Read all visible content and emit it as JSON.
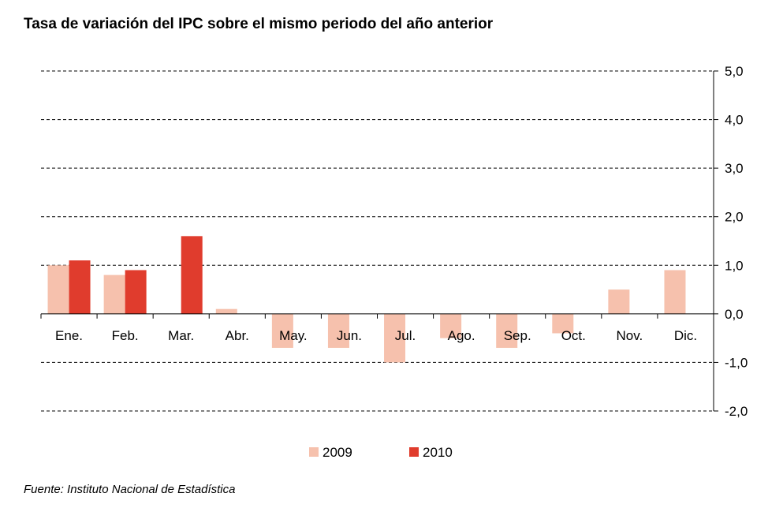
{
  "title": "Tasa de variación del IPC sobre el mismo periodo del año anterior",
  "source": "Fuente: Instituto Nacional de Estadística",
  "colors": {
    "s2009": "#f6c1ad",
    "s2010": "#e03c2d",
    "grid": "#000000"
  },
  "chart_data": {
    "type": "bar",
    "title": "Tasa de variación del IPC sobre el mismo periodo del año anterior",
    "categories": [
      "Ene.",
      "Feb.",
      "Mar.",
      "Abr.",
      "May.",
      "Jun.",
      "Jul.",
      "Ago.",
      "Sep.",
      "Oct.",
      "Nov.",
      "Dic."
    ],
    "series": [
      {
        "name": "2009",
        "values": [
          1.0,
          0.8,
          null,
          0.1,
          -0.7,
          -0.7,
          -1.0,
          -0.5,
          -0.7,
          -0.4,
          0.5,
          0.9
        ]
      },
      {
        "name": "2010",
        "values": [
          1.1,
          0.9,
          1.6,
          null,
          null,
          null,
          null,
          null,
          null,
          null,
          null,
          null
        ]
      }
    ],
    "y_ticks": [
      "5,0",
      "4,0",
      "3,0",
      "2,0",
      "1,0",
      "0,0",
      "-1,0",
      "-2,0"
    ],
    "ylim": [
      -2.0,
      5.0
    ],
    "y_axis_position": "right",
    "grid": true,
    "legend_position": "bottom-center",
    "xlabel": "",
    "ylabel": ""
  }
}
